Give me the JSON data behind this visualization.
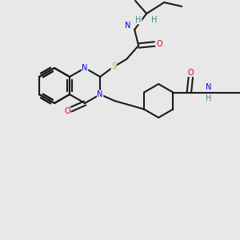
{
  "bg_color": "#e8e8e8",
  "bond_color": "#1a1a1a",
  "bond_width": 1.5,
  "atom_colors": {
    "N": "#0000ee",
    "O": "#ee0000",
    "S": "#bbbb00",
    "H": "#3a8a8a",
    "C": "#1a1a1a"
  },
  "font_size": 7.0,
  "double_sep": 0.009
}
